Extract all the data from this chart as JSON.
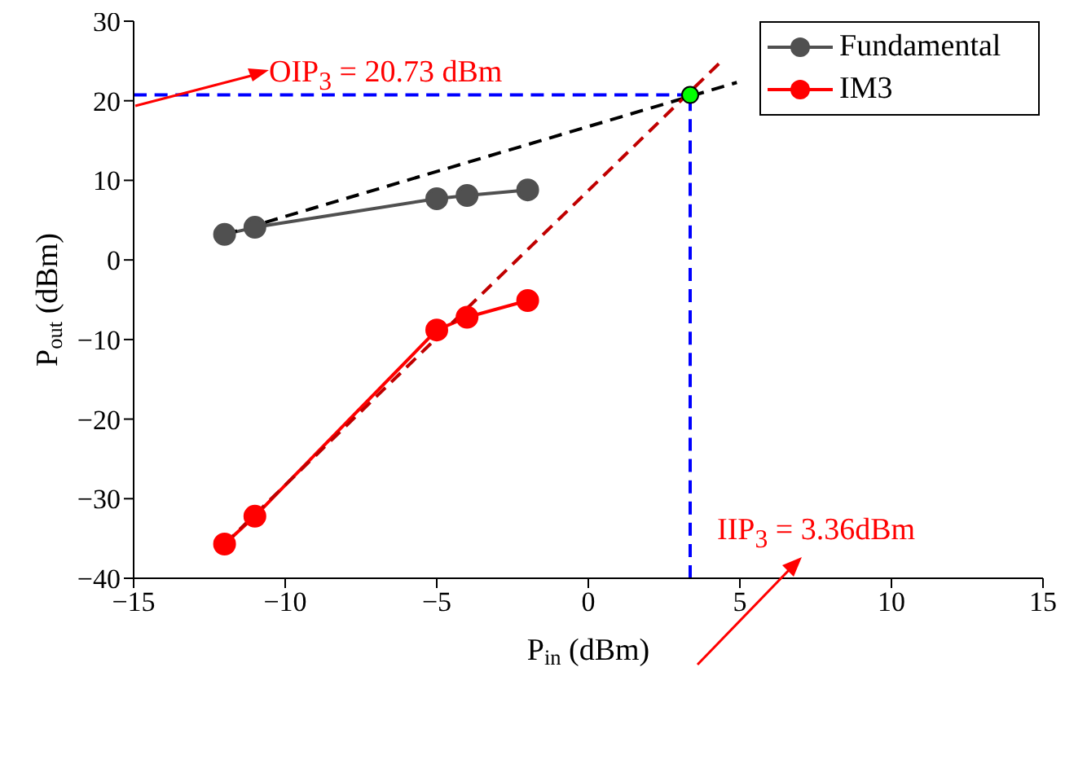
{
  "chart_data": {
    "type": "line",
    "xlabel": "P$_{in}$ (dBm)",
    "ylabel": "P$_{out}$ (dBm)",
    "xlim": [
      -15,
      15
    ],
    "xticks": [
      -15,
      -10,
      -5,
      0,
      5,
      10,
      15
    ],
    "ylim": [
      -40,
      30
    ],
    "yticks": [
      -40,
      -30,
      -20,
      -10,
      0,
      10,
      20,
      30
    ],
    "legend": "top right",
    "grid": false,
    "marker": "circle",
    "annotations": [
      "OIP$_{3}$ = 20.73 dBm",
      "IIP$_{3}$ = 3.36dBm"
    ],
    "series": [
      {
        "name": "Fundamental",
        "color": "#505050",
        "x": [
          -12,
          -11,
          -5,
          -4,
          -2
        ],
        "values": [
          3.2,
          4.1,
          7.7,
          8.1,
          8.8
        ]
      },
      {
        "name": "IM3",
        "color": "#ff0000",
        "x": [
          -12,
          -11,
          -5,
          -4,
          -2
        ],
        "values": [
          -35.7,
          -32.2,
          -8.8,
          -7.2,
          -5.1
        ]
      },
      {
        "type": "line",
        "color": "#000000",
        "line_style": "dashed",
        "marker": "none",
        "x": [
          -12,
          4.9
        ],
        "values": [
          3.2,
          22.3
        ]
      },
      {
        "type": "line",
        "color": "#c00000",
        "line_style": "dashed",
        "marker": "none",
        "x": [
          -12,
          4.4
        ],
        "values": [
          -35.7,
          25.0
        ]
      },
      {
        "type": "line",
        "color": "#0000ff",
        "line_style": "dashed",
        "marker": "none",
        "x": [
          -15,
          3.36
        ],
        "values": [
          20.73,
          20.73
        ]
      },
      {
        "type": "line",
        "color": "#0000ff",
        "line_style": "dashed",
        "marker": "none",
        "x": [
          3.36,
          3.36
        ],
        "values": [
          -40,
          20.73
        ]
      },
      {
        "type": "scatter",
        "color": "#00ff00",
        "marker": "circle",
        "x": [
          3.36
        ],
        "values": [
          20.73
        ]
      }
    ]
  }
}
